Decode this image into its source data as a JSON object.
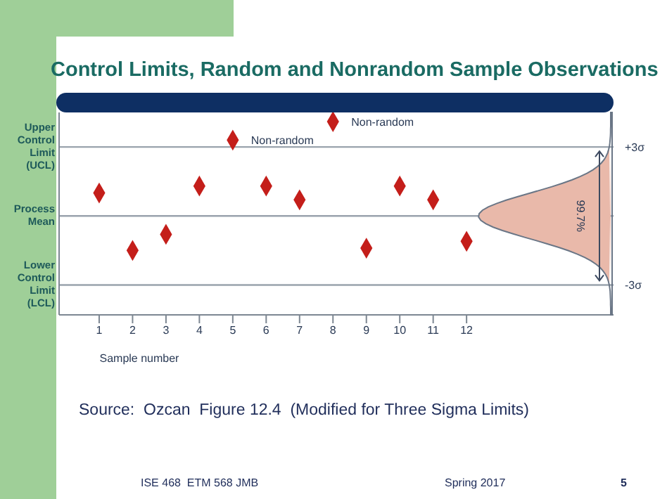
{
  "chart_data": {
    "type": "scatter",
    "title": "Control Limits, Random and Nonrandom Sample Observations",
    "xlabel": "Sample number",
    "x": [
      1,
      2,
      3,
      4,
      5,
      6,
      7,
      8,
      9,
      10,
      11,
      12
    ],
    "series": [
      {
        "color": "#c41e1a",
        "values": [
          1.0,
          -1.5,
          -0.8,
          1.3,
          3.3,
          1.3,
          0.7,
          4.1,
          -1.4,
          1.3,
          0.7,
          -1.1
        ]
      }
    ],
    "marker": "diamond",
    "xlim": [
      -0.2,
      16.4
    ],
    "xticks": [
      1,
      2,
      3,
      4,
      5,
      6,
      7,
      8,
      9,
      10,
      11,
      12
    ],
    "ylim": [
      -4.3,
      4.5
    ],
    "yticks": [
      {
        "value": -3,
        "label": "-3σ"
      },
      {
        "value": 3,
        "label": "+3σ"
      }
    ],
    "ref_lines": [
      {
        "axis": "y",
        "value": 3,
        "label": "Upper Control Limit (UCL)",
        "color": "#9aa3ad"
      },
      {
        "axis": "y",
        "value": 0,
        "label": "Process Mean",
        "color": "#9aa3ad"
      },
      {
        "axis": "y",
        "value": -3,
        "label": "Lower Control Limit (LCL)",
        "color": "#9aa3ad"
      }
    ],
    "annotations": [
      {
        "text": "Non-random",
        "x": 5,
        "y": 3.3
      },
      {
        "text": "Non-random",
        "x": 8,
        "y": 4.1
      },
      "99.7%",
      "Source:  Ozcan  Figure 12.4  (Modified for Three Sigma Limits)",
      "ISE 468  ETM 568 JMB",
      "Spring 2017",
      "5"
    ]
  }
}
